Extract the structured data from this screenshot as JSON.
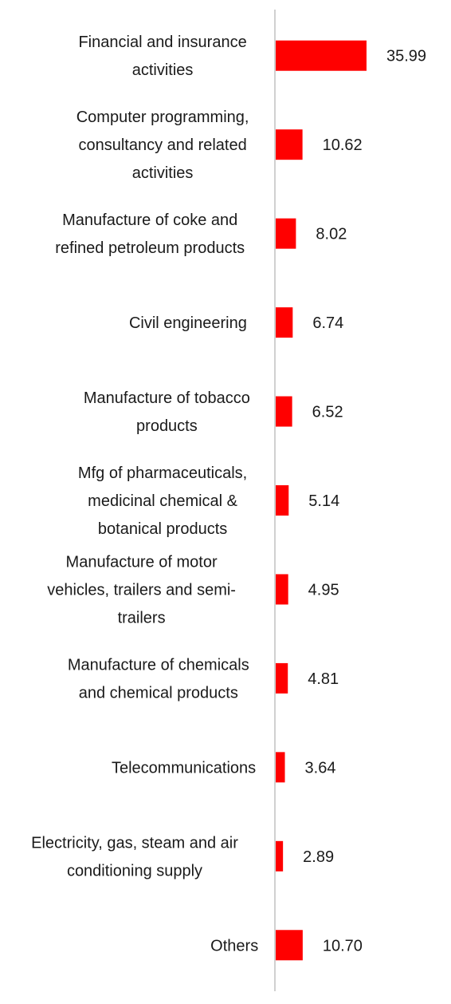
{
  "chart_data": {
    "type": "bar",
    "orientation": "horizontal",
    "title": "",
    "xlabel": "",
    "ylabel": "",
    "categories": [
      [
        "Financial and insurance",
        "activities"
      ],
      [
        "Computer programming,",
        "consultancy and related",
        "activities"
      ],
      [
        "Manufacture of coke and",
        "refined petroleum products"
      ],
      [
        "Civil engineering"
      ],
      [
        "Manufacture of tobacco",
        "products"
      ],
      [
        "Mfg of pharmaceuticals,",
        "medicinal chemical &",
        "botanical products"
      ],
      [
        "Manufacture of motor",
        "vehicles, trailers and semi-",
        "trailers"
      ],
      [
        "Manufacture of chemicals",
        "and chemical products"
      ],
      [
        "Telecommunications"
      ],
      [
        "Electricity, gas, steam and air",
        "conditioning supply"
      ],
      [
        "Others"
      ]
    ],
    "values": [
      35.99,
      10.62,
      8.02,
      6.74,
      6.52,
      5.14,
      4.95,
      4.81,
      3.64,
      2.89,
      10.7
    ],
    "value_labels": [
      "35.99",
      "10.62",
      "8.02",
      "6.74",
      "6.52",
      "5.14",
      "4.95",
      "4.81",
      "3.64",
      "2.89",
      "10.70"
    ],
    "xlim": [
      0,
      36
    ],
    "bar_color": "#ff0000",
    "axis_color": "#d0d0d0",
    "grid": false,
    "legend": "none"
  }
}
